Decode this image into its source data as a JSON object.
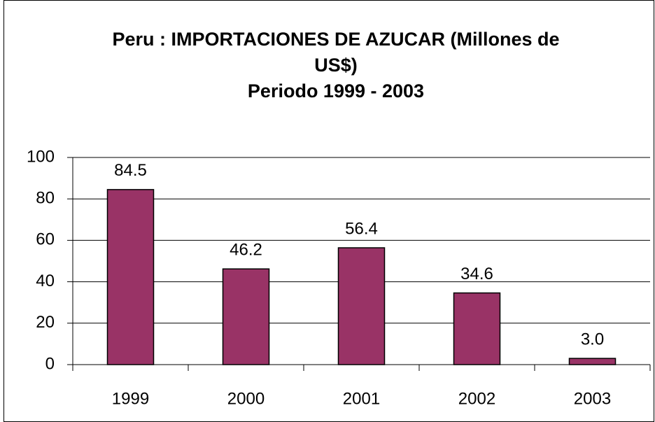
{
  "chart_data": {
    "type": "bar",
    "title": "Peru : IMPORTACIONES DE AZUCAR (Millones de US$)",
    "subtitle": "Periodo 1999 - 2003",
    "categories": [
      "1999",
      "2000",
      "2001",
      "2002",
      "2003"
    ],
    "values": [
      84.5,
      46.2,
      56.4,
      34.6,
      3.0
    ],
    "value_labels": [
      "84.5",
      "46.2",
      "56.4",
      "34.6",
      "3.0"
    ],
    "color": "#993366",
    "ylim": [
      0,
      100
    ],
    "yticks": [
      0,
      20,
      40,
      60,
      80,
      100
    ],
    "grid": true
  }
}
